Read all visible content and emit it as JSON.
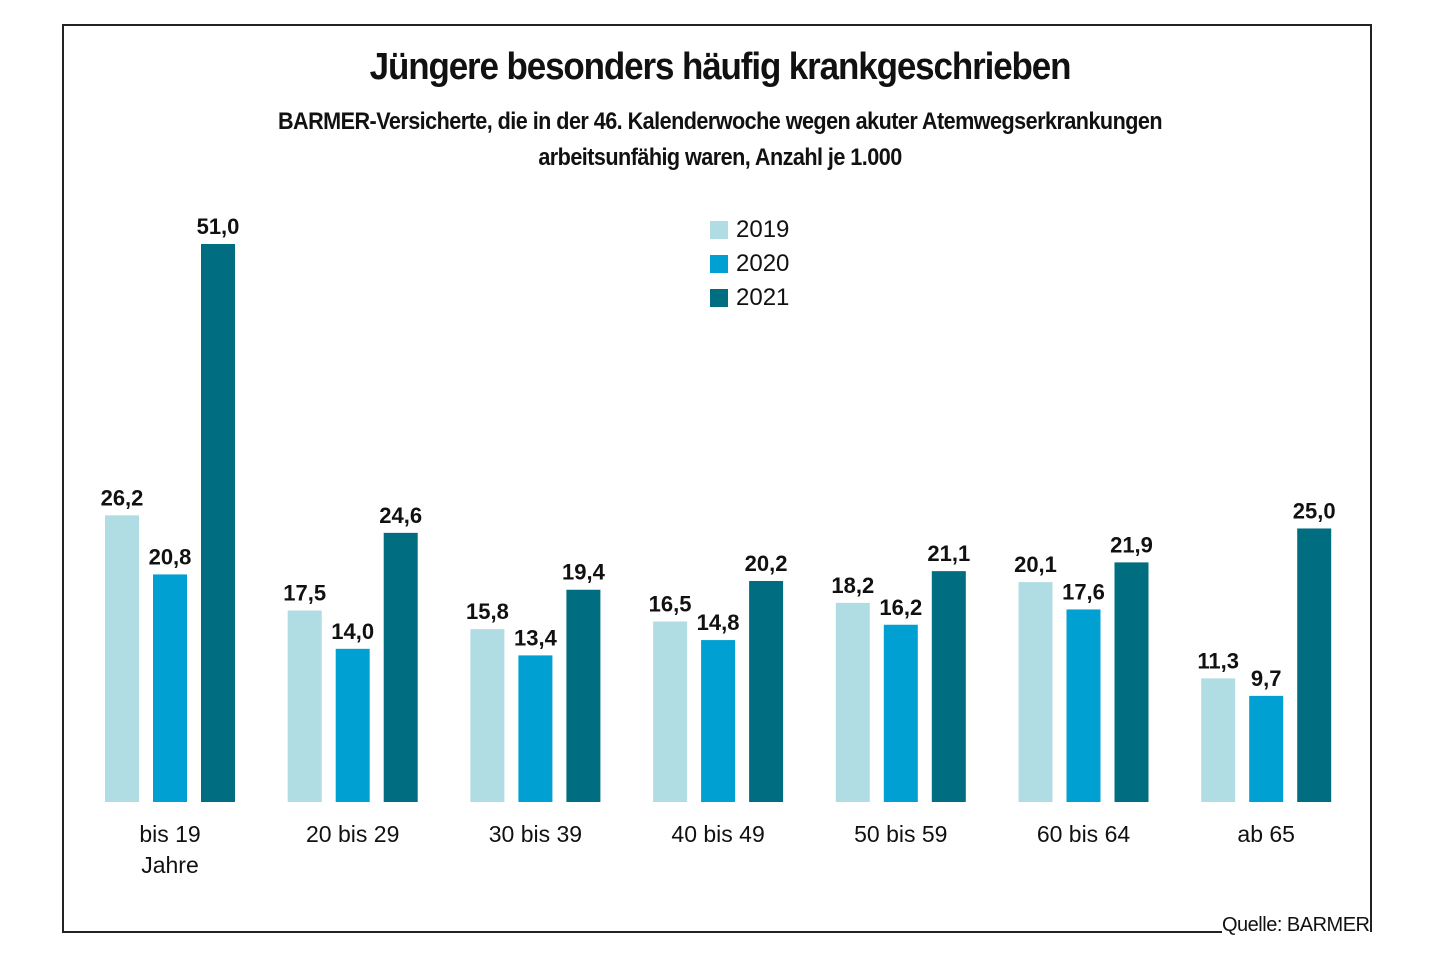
{
  "chart_data": {
    "type": "bar",
    "title": "Jüngere besonders häufig krankgeschrieben",
    "subtitle": [
      "BARMER-Versicherte, die in der 46. Kalenderwoche wegen akuter Atemwegserkrankungen",
      "arbeitsunfähig waren, Anzahl je 1.000"
    ],
    "xlabel": "",
    "ylabel": "",
    "ylim": [
      0,
      51
    ],
    "grid": false,
    "legend_position": "top-center",
    "categories": [
      [
        "bis 19",
        "Jahre"
      ],
      [
        "20 bis 29"
      ],
      [
        "30 bis 39"
      ],
      [
        "40 bis 49"
      ],
      [
        "50 bis 59"
      ],
      [
        "60 bis 64"
      ],
      [
        "ab 65"
      ]
    ],
    "series": [
      {
        "name": "2019",
        "color": "#b0dde4",
        "values": [
          26.2,
          17.5,
          15.8,
          16.5,
          18.2,
          20.1,
          11.3
        ],
        "labels": [
          "26,2",
          "17,5",
          "15,8",
          "16,5",
          "18,2",
          "20,1",
          "11,3"
        ]
      },
      {
        "name": "2020",
        "color": "#00a0d2",
        "values": [
          20.8,
          14.0,
          13.4,
          14.8,
          16.2,
          17.6,
          9.7
        ],
        "labels": [
          "20,8",
          "14,0",
          "13,4",
          "14,8",
          "16,2",
          "17,6",
          "9,7"
        ]
      },
      {
        "name": "2021",
        "color": "#006e80",
        "values": [
          51.0,
          24.6,
          19.4,
          20.2,
          21.1,
          21.9,
          25.0
        ],
        "labels": [
          "51,0",
          "24,6",
          "19,4",
          "20,2",
          "21,1",
          "21,9",
          "25,0"
        ]
      }
    ],
    "source": "Quelle: BARMER"
  }
}
